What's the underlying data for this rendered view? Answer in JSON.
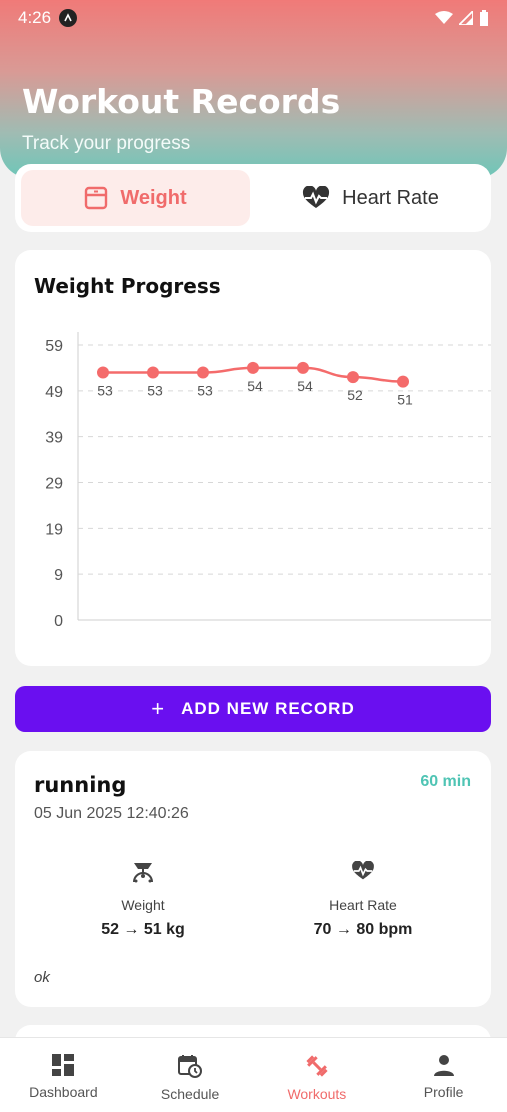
{
  "status": {
    "time": "4:26"
  },
  "header": {
    "title": "Workout Records",
    "subtitle": "Track your progress"
  },
  "tabs": [
    {
      "label": "Weight",
      "active": true
    },
    {
      "label": "Heart Rate",
      "active": false
    }
  ],
  "chart_data": {
    "type": "line",
    "title": "Weight Progress",
    "y_ticks": [
      59,
      49,
      39,
      29,
      19,
      9,
      0
    ],
    "ylim": [
      0,
      59
    ],
    "values": [
      53,
      53,
      53,
      54,
      54,
      52,
      51
    ],
    "labels": [
      "53",
      "53",
      "53",
      "54",
      "54",
      "52",
      "51"
    ],
    "grid": true,
    "color": "#f46b6b"
  },
  "add_button": {
    "label": "ADD NEW RECORD"
  },
  "record": {
    "activity": "running",
    "date": "05 Jun 2025 12:40:26",
    "duration": "60 min",
    "weight_label": "Weight",
    "weight_value": "52 → 51 kg",
    "hr_label": "Heart Rate",
    "hr_value": "70 → 80 bpm",
    "note": "ok"
  },
  "nav": [
    {
      "label": "Dashboard",
      "icon": "dashboard-icon"
    },
    {
      "label": "Schedule",
      "icon": "schedule-icon"
    },
    {
      "label": "Workouts",
      "icon": "dumbbell-icon",
      "active": true
    },
    {
      "label": "Profile",
      "icon": "person-icon"
    }
  ]
}
